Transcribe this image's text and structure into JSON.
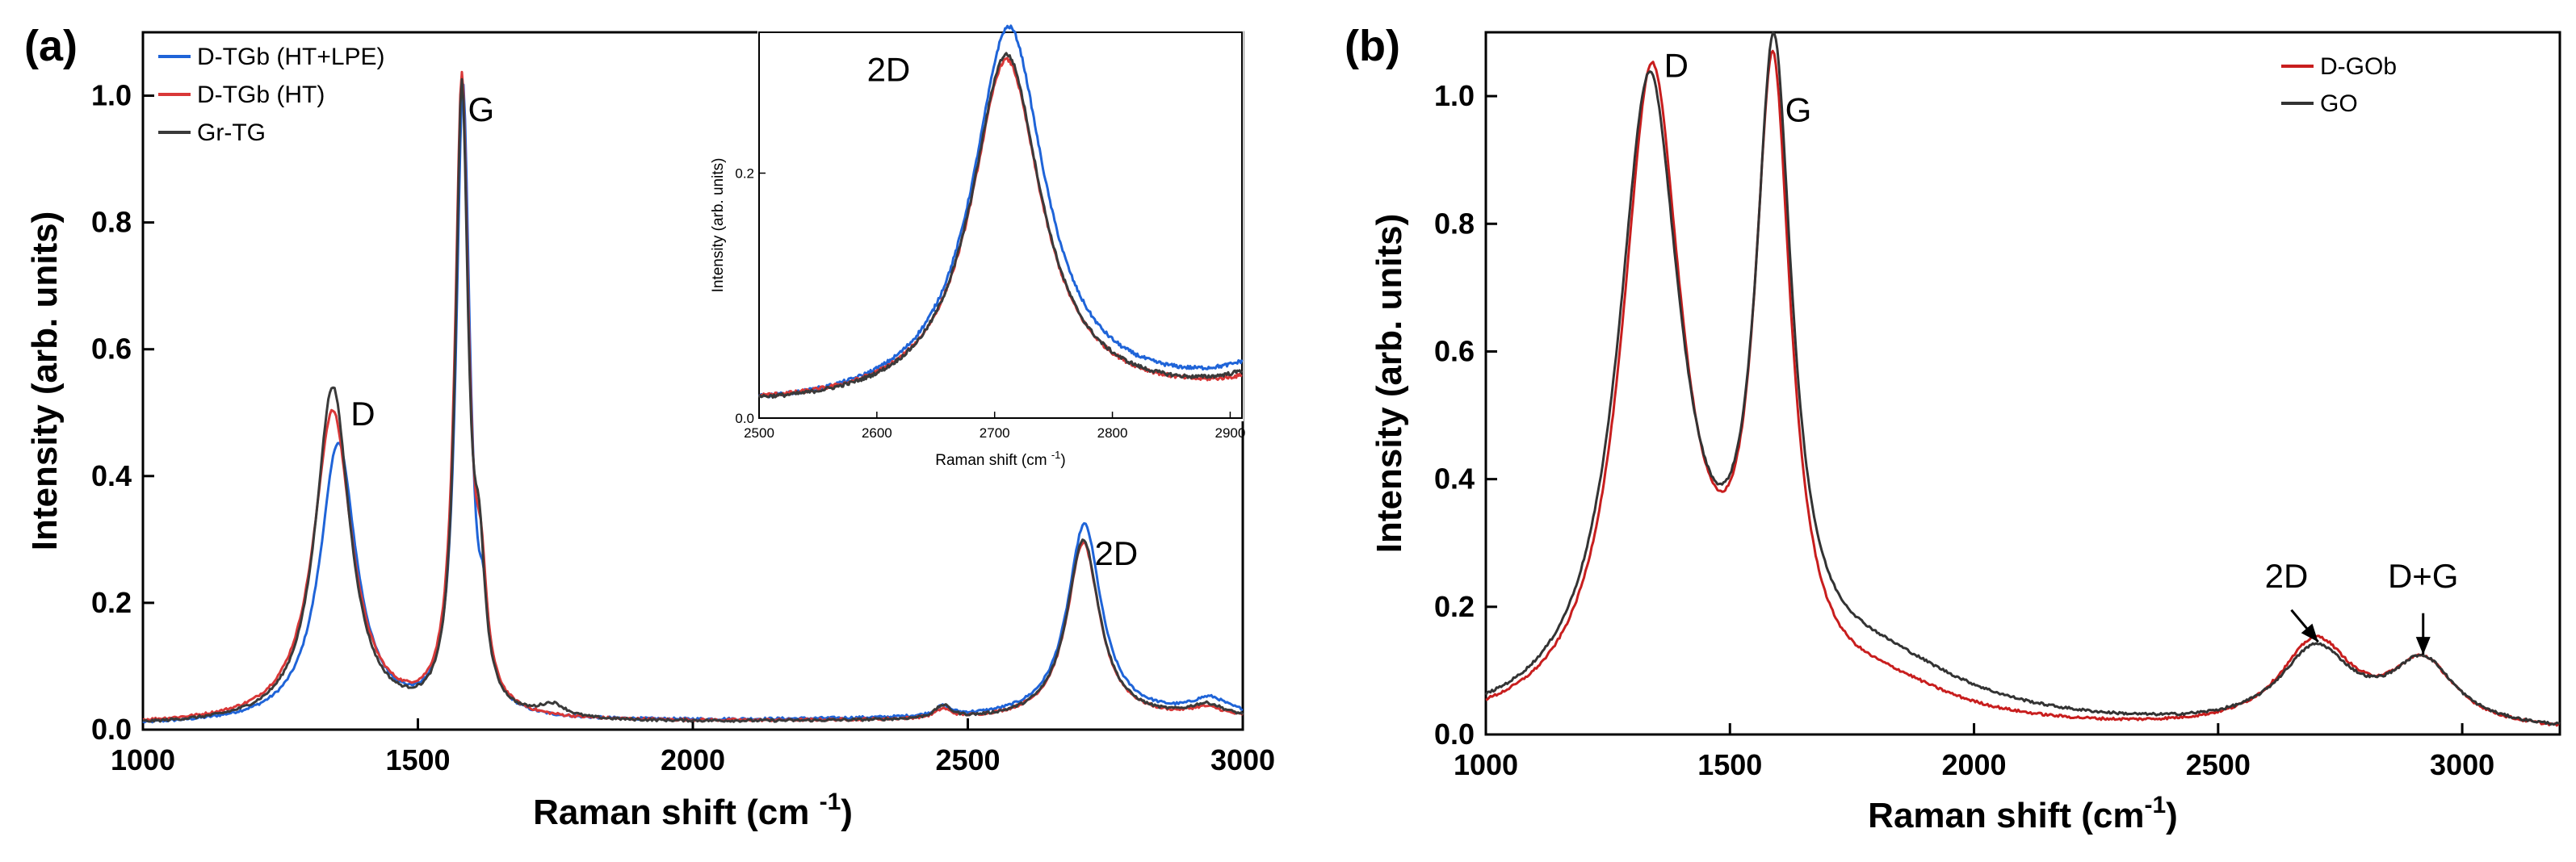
{
  "chart_data": [
    {
      "type": "line",
      "panel_label": "(a)",
      "title": "",
      "xlabel": "Raman shift (cm -1)",
      "xlabel_main": "Raman shift (cm ",
      "xlabel_sup": "-1",
      "xlabel_close": ")",
      "ylabel": "Intensity (arb. units)",
      "xlim": [
        1000,
        3000
      ],
      "ylim": [
        0,
        1.1
      ],
      "xticks": [
        1000,
        1500,
        2000,
        2500,
        3000
      ],
      "xtick_labels": [
        "1000",
        "1500",
        "2000",
        "2500",
        "3000"
      ],
      "yticks": [
        0,
        0.2,
        0.4,
        0.6,
        0.8,
        1.0
      ],
      "ytick_labels": [
        "0.0",
        "0.2",
        "0.4",
        "0.6",
        "0.8",
        "1.0"
      ],
      "legend_position": "top-left",
      "series": [
        {
          "name": "D-TGb (HT+LPE)",
          "color": "#1f64d8",
          "params": {
            "base": 0.006,
            "baseEnd": 0.02,
            "peaks": [
              [
                1355,
                0.44,
                40
              ],
              [
                1582,
                0.99,
                15
              ],
              [
                1620,
                0.1,
                10
              ],
              [
                2455,
                0.015,
                17
              ],
              [
                2712,
                0.305,
                37
              ],
              [
                2940,
                0.025,
                40
              ]
            ]
          }
        },
        {
          "name": "D-TGb (HT)",
          "color": "#d93838",
          "params": {
            "base": 0.008,
            "baseEnd": 0.015,
            "peaks": [
              [
                1345,
                0.49,
                42
              ],
              [
                1580,
                0.995,
                15
              ],
              [
                1615,
                0.15,
                12
              ],
              [
                2455,
                0.014,
                17
              ],
              [
                2710,
                0.28,
                36
              ],
              [
                2935,
                0.015,
                40
              ]
            ]
          }
        },
        {
          "name": "Gr-TG",
          "color": "#3a3a3a",
          "params": {
            "base": 0.006,
            "baseEnd": 0.015,
            "peaks": [
              [
                1345,
                0.53,
                38
              ],
              [
                1580,
                0.98,
                14
              ],
              [
                1612,
                0.18,
                12
              ],
              [
                1745,
                0.02,
                30
              ],
              [
                2455,
                0.02,
                18
              ],
              [
                2710,
                0.285,
                36
              ],
              [
                2935,
                0.02,
                40
              ]
            ]
          }
        }
      ],
      "annotations": [
        {
          "text": "D",
          "x": 1400,
          "y": 0.48
        },
        {
          "text": "G",
          "x": 1615,
          "y": 0.96
        },
        {
          "text": "2D",
          "x": 2770,
          "y": 0.26
        }
      ],
      "inset": {
        "xlabel_main": "Raman shift (cm ",
        "xlabel_sup": "-1",
        "xlabel_close": ")",
        "ylabel": "Intensity (arb. units)",
        "xlim": [
          2500,
          2910
        ],
        "ylim": [
          0,
          0.315
        ],
        "xticks": [
          2500,
          2600,
          2700,
          2800,
          2900
        ],
        "xtick_labels": [
          "2500",
          "2600",
          "2700",
          "2800",
          "2900"
        ],
        "yticks": [
          0,
          0.2
        ],
        "ytick_labels": [
          "0.0",
          "0.2"
        ],
        "annotation": {
          "text": "2D",
          "x": 2610,
          "y": 0.275
        }
      }
    },
    {
      "type": "line",
      "panel_label": "(b)",
      "title": "",
      "xlabel": "Raman shift (cm-1)",
      "xlabel_main": "Raman shift (cm",
      "xlabel_sup": "-1",
      "xlabel_close": ")",
      "ylabel": "Intensity (arb. units)",
      "xlim": [
        1000,
        3200
      ],
      "ylim": [
        0,
        1.1
      ],
      "xticks": [
        1000,
        1500,
        2000,
        2500,
        3000
      ],
      "xtick_labels": [
        "1000",
        "1500",
        "2000",
        "2500",
        "3000"
      ],
      "yticks": [
        0,
        0.2,
        0.4,
        0.6,
        0.8,
        1.0
      ],
      "ytick_labels": [
        "0.0",
        "0.2",
        "0.4",
        "0.6",
        "0.8",
        "1.0"
      ],
      "legend_position": "top-right",
      "series": [
        {
          "name": "D-GOb",
          "color": "#c81e1e",
          "params": {
            "base": 0.0,
            "baseEnd": 0.0,
            "peaks": [
              [
                1340,
                1.015,
                75
              ],
              [
                1588,
                0.965,
                45
              ],
              [
                1820,
                0.05,
                180
              ],
              [
                2700,
                0.135,
                90
              ],
              [
                2920,
                0.1,
                80
              ]
            ]
          }
        },
        {
          "name": "GO",
          "color": "#333333",
          "params": {
            "base": 0.0,
            "baseEnd": 0.0,
            "peaks": [
              [
                1335,
                0.99,
                78
              ],
              [
                1590,
                0.965,
                45
              ],
              [
                1800,
                0.09,
                230
              ],
              [
                2700,
                0.12,
                90
              ],
              [
                2920,
                0.1,
                80
              ]
            ]
          }
        }
      ],
      "annotations": [
        {
          "text": "D",
          "x": 1390,
          "y": 1.03
        },
        {
          "text": "G",
          "x": 1640,
          "y": 0.96
        },
        {
          "text": "2D",
          "x": 2640,
          "y": 0.23
        },
        {
          "text": "D+G",
          "x": 2920,
          "y": 0.23
        }
      ],
      "arrows": [
        {
          "from": [
            2650,
            0.195
          ],
          "to": [
            2705,
            0.145
          ]
        },
        {
          "from": [
            2920,
            0.19
          ],
          "to": [
            2920,
            0.125
          ]
        }
      ]
    }
  ]
}
